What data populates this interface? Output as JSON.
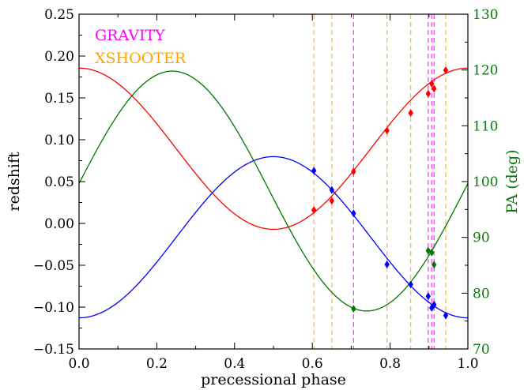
{
  "chart_data": {
    "type": "scatter",
    "xlabel": "precessional phase",
    "ylabel": "redshift",
    "y2label": "PA (deg)",
    "xlim": [
      0.0,
      1.0
    ],
    "ylim": [
      -0.15,
      0.25
    ],
    "y2lim": [
      70,
      130
    ],
    "xticks": [
      "0.0",
      "0.2",
      "0.4",
      "0.6",
      "0.8",
      "1.0"
    ],
    "yticks": [
      "0.25",
      "0.20",
      "0.15",
      "0.10",
      "0.05",
      "0.00",
      "−0.05",
      "−0.10",
      "−0.15"
    ],
    "y2ticks": [
      "130",
      "120",
      "110",
      "100",
      "90",
      "80",
      "70"
    ],
    "legend": {
      "position": "top-left",
      "entries": [
        {
          "label": "GRAVITY",
          "color": "#ff00ff"
        },
        {
          "label": "XSHOOTER",
          "color": "#ffa500"
        }
      ]
    },
    "vlines": {
      "GRAVITY": [
        0.706,
        0.898,
        0.907,
        0.913
      ],
      "XSHOOTER": [
        0.604,
        0.65,
        0.792,
        0.853,
        0.943
      ]
    },
    "curves": [
      {
        "color": "#ff0000",
        "axis": "left",
        "mean": 0.0893,
        "amp": 0.0963,
        "phase0": 0.0
      },
      {
        "color": "#0000ff",
        "axis": "left",
        "mean": -0.0165,
        "amp": -0.0963,
        "phase0": 0.0
      },
      {
        "color": "#007700",
        "axis": "right",
        "mean": 98.3,
        "amp": 21.5,
        "phase0": 0.24
      }
    ],
    "series": [
      {
        "color": "#ff0000",
        "axis": "left",
        "x": [
          0.604,
          0.65,
          0.706,
          0.792,
          0.853,
          0.898,
          0.907,
          0.913,
          0.943
        ],
        "y": [
          0.016,
          0.027,
          0.062,
          0.111,
          0.132,
          0.155,
          0.167,
          0.161,
          0.183
        ]
      },
      {
        "color": "#0000ff",
        "axis": "left",
        "x": [
          0.604,
          0.65,
          0.706,
          0.792,
          0.853,
          0.898,
          0.907,
          0.913,
          0.943
        ],
        "y": [
          0.063,
          0.04,
          0.012,
          -0.049,
          -0.073,
          -0.087,
          -0.101,
          -0.097,
          -0.11
        ]
      },
      {
        "color": "#007700",
        "axis": "right",
        "x": [
          0.706,
          0.898,
          0.907,
          0.913
        ],
        "y": [
          77.2,
          87.6,
          87.3,
          85.1
        ]
      }
    ]
  }
}
